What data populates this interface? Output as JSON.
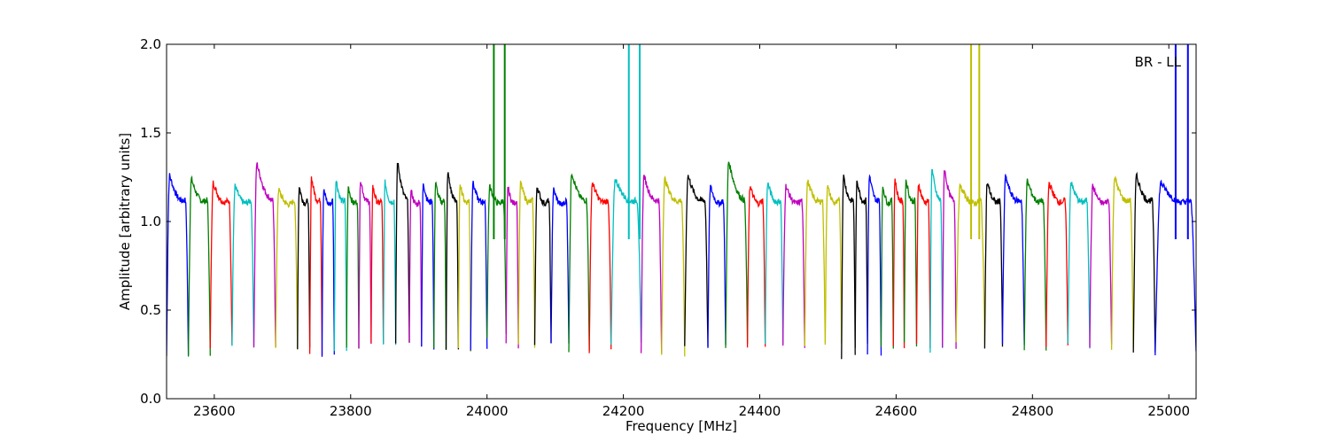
{
  "chart_data": {
    "type": "line",
    "title": "",
    "annotation": "BR - LL",
    "xlabel": "Frequency [MHz]",
    "ylabel": "Amplitude [arbitrary units]",
    "xlim": [
      23530,
      25040
    ],
    "ylim": [
      0.0,
      2.0
    ],
    "xticks": [
      23600,
      23800,
      24000,
      24200,
      24400,
      24600,
      24800,
      25000
    ],
    "yticks": [
      0.0,
      0.5,
      1.0,
      1.5,
      2.0
    ],
    "xtick_labels": [
      "23600",
      "23800",
      "24000",
      "24200",
      "24400",
      "24600",
      "24800",
      "25000"
    ],
    "ytick_labels": [
      "0.0",
      "0.5",
      "1.0",
      "1.5",
      "2.0"
    ],
    "grid": false,
    "colors": [
      "#0000ff",
      "#008000",
      "#ff0000",
      "#00bfbf",
      "#bf00bf",
      "#bfbf00",
      "#000000"
    ],
    "segments": [
      {
        "x0": 23530,
        "x1": 23562,
        "peak": 1.26,
        "min": 0.24,
        "color": "#0000ff"
      },
      {
        "x0": 23562,
        "x1": 23594,
        "peak": 1.24,
        "min": 0.25,
        "color": "#008000"
      },
      {
        "x0": 23594,
        "x1": 23626,
        "peak": 1.22,
        "min": 0.3,
        "color": "#ff0000"
      },
      {
        "x0": 23626,
        "x1": 23658,
        "peak": 1.2,
        "min": 0.3,
        "color": "#00bfbf"
      },
      {
        "x0": 23658,
        "x1": 23690,
        "peak": 1.33,
        "min": 0.3,
        "color": "#bf00bf"
      },
      {
        "x0": 23690,
        "x1": 23722,
        "peak": 1.18,
        "min": 0.3,
        "color": "#bfbf00"
      },
      {
        "x0": 23722,
        "x1": 23740,
        "peak": 1.2,
        "min": 0.28,
        "color": "#000000"
      },
      {
        "x0": 23740,
        "x1": 23758,
        "peak": 1.25,
        "min": 0.25,
        "color": "#ff0000"
      },
      {
        "x0": 23758,
        "x1": 23776,
        "peak": 1.18,
        "min": 0.25,
        "color": "#0000ff"
      },
      {
        "x0": 23776,
        "x1": 23794,
        "peak": 1.24,
        "min": 0.26,
        "color": "#00bfbf"
      },
      {
        "x0": 23794,
        "x1": 23812,
        "peak": 1.2,
        "min": 0.3,
        "color": "#008000"
      },
      {
        "x0": 23812,
        "x1": 23830,
        "peak": 1.24,
        "min": 0.3,
        "color": "#bf00bf"
      },
      {
        "x0": 23830,
        "x1": 23848,
        "peak": 1.2,
        "min": 0.3,
        "color": "#ff0000"
      },
      {
        "x0": 23848,
        "x1": 23866,
        "peak": 1.22,
        "min": 0.3,
        "color": "#00bfbf"
      },
      {
        "x0": 23866,
        "x1": 23886,
        "peak": 1.34,
        "min": 0.3,
        "color": "#000000"
      },
      {
        "x0": 23886,
        "x1": 23904,
        "peak": 1.18,
        "min": 0.3,
        "color": "#bf00bf"
      },
      {
        "x0": 23904,
        "x1": 23922,
        "peak": 1.22,
        "min": 0.28,
        "color": "#0000ff"
      },
      {
        "x0": 23922,
        "x1": 23940,
        "peak": 1.22,
        "min": 0.27,
        "color": "#008000"
      },
      {
        "x0": 23940,
        "x1": 23958,
        "peak": 1.28,
        "min": 0.27,
        "color": "#000000"
      },
      {
        "x0": 23958,
        "x1": 23976,
        "peak": 1.22,
        "min": 0.27,
        "color": "#bfbf00"
      },
      {
        "x0": 23976,
        "x1": 24000,
        "peak": 1.22,
        "min": 0.28,
        "color": "#0000ff"
      },
      {
        "x0": 24000,
        "x1": 24028,
        "peak": 1.2,
        "min": 0.35,
        "color": "#008000"
      },
      {
        "x0": 24028,
        "x1": 24046,
        "peak": 1.2,
        "min": 0.3,
        "color": "#bf00bf"
      },
      {
        "x0": 24046,
        "x1": 24070,
        "peak": 1.22,
        "min": 0.3,
        "color": "#bfbf00"
      },
      {
        "x0": 24070,
        "x1": 24094,
        "peak": 1.2,
        "min": 0.3,
        "color": "#000000"
      },
      {
        "x0": 24094,
        "x1": 24120,
        "peak": 1.18,
        "min": 0.3,
        "color": "#0000ff"
      },
      {
        "x0": 24120,
        "x1": 24150,
        "peak": 1.28,
        "min": 0.27,
        "color": "#008000"
      },
      {
        "x0": 24150,
        "x1": 24182,
        "peak": 1.22,
        "min": 0.27,
        "color": "#ff0000"
      },
      {
        "x0": 24182,
        "x1": 24226,
        "peak": 1.24,
        "min": 0.3,
        "color": "#00bfbf"
      },
      {
        "x0": 24226,
        "x1": 24256,
        "peak": 1.26,
        "min": 0.25,
        "color": "#bf00bf"
      },
      {
        "x0": 24256,
        "x1": 24290,
        "peak": 1.24,
        "min": 0.25,
        "color": "#bfbf00"
      },
      {
        "x0": 24290,
        "x1": 24324,
        "peak": 1.26,
        "min": 0.28,
        "color": "#000000"
      },
      {
        "x0": 24324,
        "x1": 24350,
        "peak": 1.2,
        "min": 0.3,
        "color": "#0000ff"
      },
      {
        "x0": 24350,
        "x1": 24382,
        "peak": 1.34,
        "min": 0.3,
        "color": "#008000"
      },
      {
        "x0": 24382,
        "x1": 24408,
        "peak": 1.2,
        "min": 0.3,
        "color": "#ff0000"
      },
      {
        "x0": 24408,
        "x1": 24434,
        "peak": 1.22,
        "min": 0.3,
        "color": "#00bfbf"
      },
      {
        "x0": 24434,
        "x1": 24466,
        "peak": 1.2,
        "min": 0.3,
        "color": "#bf00bf"
      },
      {
        "x0": 24466,
        "x1": 24496,
        "peak": 1.23,
        "min": 0.3,
        "color": "#bfbf00"
      },
      {
        "x0": 24496,
        "x1": 24520,
        "peak": 1.2,
        "min": 0.3,
        "color": "#bfbf00"
      },
      {
        "x0": 24520,
        "x1": 24540,
        "peak": 1.26,
        "min": 0.24,
        "color": "#000000"
      },
      {
        "x0": 24540,
        "x1": 24558,
        "peak": 1.24,
        "min": 0.3,
        "color": "#000000"
      },
      {
        "x0": 24558,
        "x1": 24578,
        "peak": 1.26,
        "min": 0.25,
        "color": "#0000ff"
      },
      {
        "x0": 24578,
        "x1": 24596,
        "peak": 1.2,
        "min": 0.3,
        "color": "#008000"
      },
      {
        "x0": 24596,
        "x1": 24612,
        "peak": 1.24,
        "min": 0.3,
        "color": "#ff0000"
      },
      {
        "x0": 24612,
        "x1": 24630,
        "peak": 1.24,
        "min": 0.3,
        "color": "#008000"
      },
      {
        "x0": 24630,
        "x1": 24650,
        "peak": 1.22,
        "min": 0.3,
        "color": "#ff0000"
      },
      {
        "x0": 24650,
        "x1": 24668,
        "peak": 1.3,
        "min": 0.27,
        "color": "#00bfbf"
      },
      {
        "x0": 24668,
        "x1": 24688,
        "peak": 1.3,
        "min": 0.28,
        "color": "#bf00bf"
      },
      {
        "x0": 24688,
        "x1": 24730,
        "peak": 1.2,
        "min": 0.33,
        "color": "#bfbf00"
      },
      {
        "x0": 24730,
        "x1": 24756,
        "peak": 1.22,
        "min": 0.3,
        "color": "#000000"
      },
      {
        "x0": 24756,
        "x1": 24788,
        "peak": 1.25,
        "min": 0.3,
        "color": "#0000ff"
      },
      {
        "x0": 24788,
        "x1": 24820,
        "peak": 1.23,
        "min": 0.27,
        "color": "#008000"
      },
      {
        "x0": 24820,
        "x1": 24852,
        "peak": 1.22,
        "min": 0.3,
        "color": "#ff0000"
      },
      {
        "x0": 24852,
        "x1": 24884,
        "peak": 1.22,
        "min": 0.3,
        "color": "#00bfbf"
      },
      {
        "x0": 24884,
        "x1": 24916,
        "peak": 1.2,
        "min": 0.3,
        "color": "#bf00bf"
      },
      {
        "x0": 24916,
        "x1": 24948,
        "peak": 1.25,
        "min": 0.27,
        "color": "#bfbf00"
      },
      {
        "x0": 24948,
        "x1": 24980,
        "peak": 1.26,
        "min": 0.27,
        "color": "#000000"
      },
      {
        "x0": 24980,
        "x1": 25040,
        "peak": 1.22,
        "min": 0.25,
        "color": "#0000ff"
      }
    ],
    "spikes": [
      {
        "x": 24010,
        "color": "#008000"
      },
      {
        "x": 24026,
        "color": "#008000"
      },
      {
        "x": 24208,
        "color": "#00bfbf"
      },
      {
        "x": 24224,
        "color": "#00bfbf"
      },
      {
        "x": 24710,
        "color": "#bfbf00"
      },
      {
        "x": 24722,
        "color": "#bfbf00"
      },
      {
        "x": 25010,
        "color": "#0000ff"
      },
      {
        "x": 25028,
        "color": "#0000ff"
      }
    ]
  }
}
